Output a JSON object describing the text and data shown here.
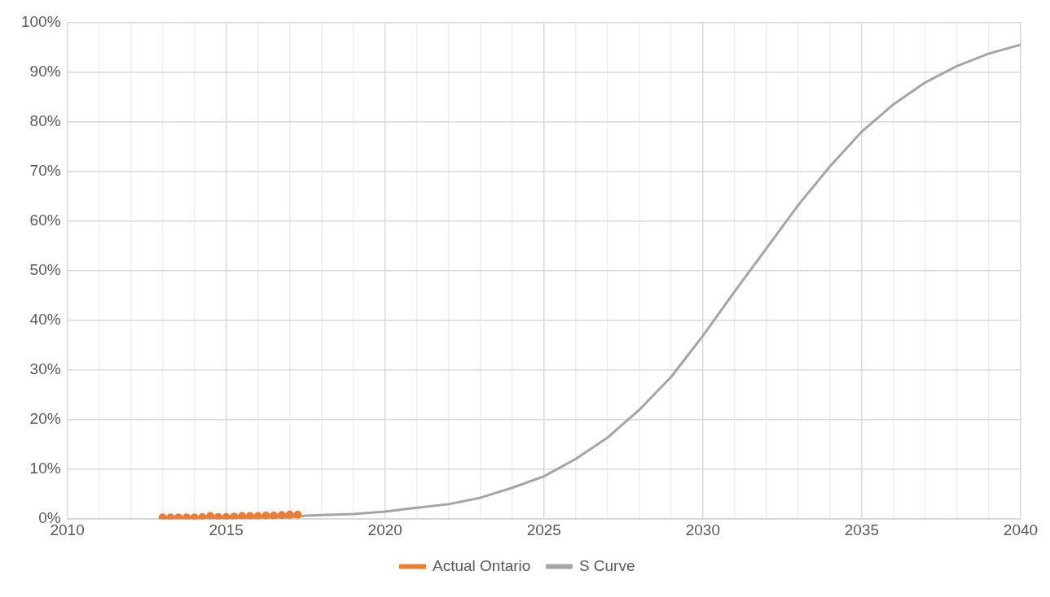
{
  "chart_data": {
    "type": "line",
    "xlim": [
      2010,
      2040
    ],
    "xticks": [
      2010,
      {
        "value": 2011,
        "label": null
      },
      {
        "value": 2012,
        "label": null
      },
      {
        "value": 2013,
        "label": null
      },
      {
        "value": 2014,
        "label": null
      },
      2015,
      {
        "value": 2016,
        "label": null
      },
      {
        "value": 2017,
        "label": null
      },
      {
        "value": 2018,
        "label": null
      },
      {
        "value": 2019,
        "label": null
      },
      2020,
      {
        "value": 2021,
        "label": null
      },
      {
        "value": 2022,
        "label": null
      },
      {
        "value": 2023,
        "label": null
      },
      {
        "value": 2024,
        "label": null
      },
      2025,
      {
        "value": 2026,
        "label": null
      },
      {
        "value": 2027,
        "label": null
      },
      {
        "value": 2028,
        "label": null
      },
      {
        "value": 2029,
        "label": null
      },
      2030,
      {
        "value": 2031,
        "label": null
      },
      {
        "value": 2032,
        "label": null
      },
      {
        "value": 2033,
        "label": null
      },
      {
        "value": 2034,
        "label": null
      },
      2035,
      {
        "value": 2036,
        "label": null
      },
      {
        "value": 2037,
        "label": null
      },
      {
        "value": 2038,
        "label": null
      },
      {
        "value": 2039,
        "label": null
      },
      2040
    ],
    "ylim": [
      0,
      100
    ],
    "yticks": [
      {
        "value": 0,
        "label": "0%"
      },
      {
        "value": 10,
        "label": "10%"
      },
      {
        "value": 20,
        "label": "20%"
      },
      {
        "value": 30,
        "label": "30%"
      },
      {
        "value": 40,
        "label": "40%"
      },
      {
        "value": 50,
        "label": "50%"
      },
      {
        "value": 60,
        "label": "60%"
      },
      {
        "value": 70,
        "label": "70%"
      },
      {
        "value": 80,
        "label": "80%"
      },
      {
        "value": 90,
        "label": "90%"
      },
      {
        "value": 100,
        "label": "100%"
      }
    ],
    "grid": true,
    "legend": "bottom",
    "series": [
      {
        "name": "Actual Ontario",
        "color": "#ed7d31",
        "marker": "circle",
        "x": [
          2013,
          2013.25,
          2013.5,
          2013.75,
          2014,
          2014.25,
          2014.5,
          2014.75,
          2015,
          2015.25,
          2015.5,
          2015.75,
          2016,
          2016.25,
          2016.5,
          2016.75,
          2017,
          2017.25
        ],
        "values": [
          0.3,
          0.3,
          0.3,
          0.3,
          0.3,
          0.4,
          0.6,
          0.4,
          0.4,
          0.5,
          0.6,
          0.6,
          0.6,
          0.7,
          0.7,
          0.8,
          0.9,
          0.9
        ]
      },
      {
        "name": "S Curve",
        "color": "#a5a5a5",
        "marker": "none",
        "x": [
          2013,
          2014,
          2015,
          2016,
          2017,
          2017.5,
          2018,
          2019,
          2020,
          2021,
          2022,
          2023,
          2024,
          2025,
          2026,
          2027,
          2028,
          2029,
          2030,
          2031,
          2032,
          2033,
          2034,
          2035,
          2036,
          2037,
          2038,
          2039,
          2040
        ],
        "values": [
          0.1,
          0.1,
          0.2,
          0.3,
          0.3,
          0.7,
          0.8,
          1.0,
          1.5,
          2.3,
          3.0,
          4.3,
          6.3,
          8.6,
          12.1,
          16.4,
          22.0,
          28.6,
          36.9,
          45.8,
          54.5,
          63.2,
          71.0,
          78.0,
          83.5,
          87.9,
          91.2,
          93.7,
          95.5
        ]
      }
    ]
  }
}
